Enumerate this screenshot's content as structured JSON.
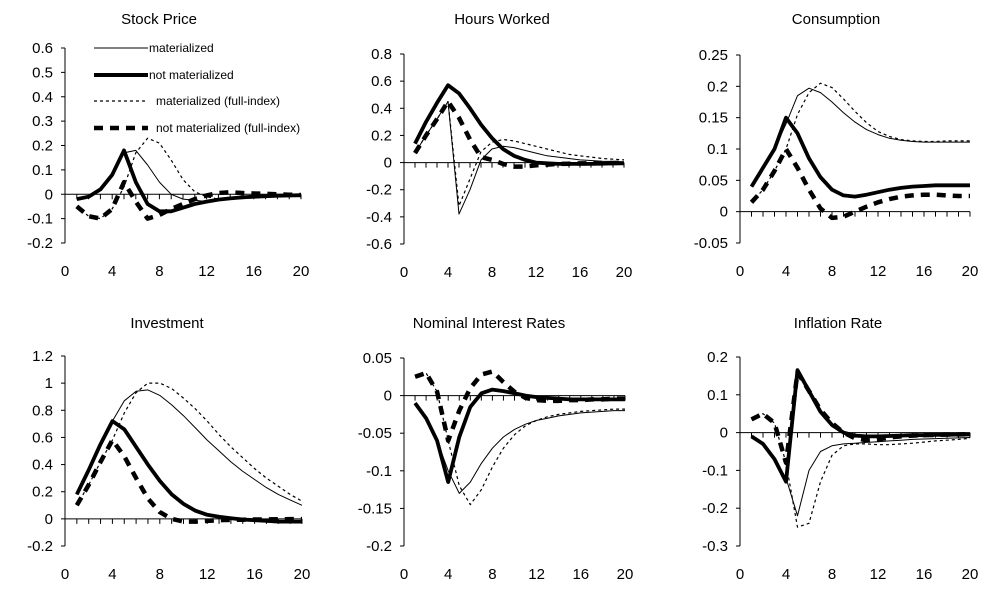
{
  "legend": [
    {
      "label": "materialized",
      "style": "thin"
    },
    {
      "label": "not materialized",
      "style": "thick"
    },
    {
      "label": "materialized (full-index)",
      "style": "thin-dashed"
    },
    {
      "label": "not materialized (full-index)",
      "style": "thick-dashed"
    }
  ],
  "chart_data": [
    {
      "type": "line",
      "title": "Stock Price",
      "x": [
        1,
        2,
        3,
        4,
        5,
        6,
        7,
        8,
        9,
        10,
        11,
        12,
        13,
        14,
        15,
        16,
        17,
        18,
        19,
        20
      ],
      "xticks": [
        0,
        4,
        8,
        12,
        16,
        20
      ],
      "ylim": [
        -0.2,
        0.6
      ],
      "yticks": [
        -0.2,
        -0.1,
        0,
        0.1,
        0.2,
        0.3,
        0.4,
        0.5,
        0.6
      ],
      "ytick_labels": [
        "-0.2",
        "-0.1",
        "0",
        "0.1",
        "0.2",
        "0.3",
        "0.4",
        "0.5",
        "0.6"
      ],
      "legend_position": "top-left",
      "series": [
        {
          "name": "materialized",
          "values": [
            -0.02,
            -0.01,
            0.02,
            0.08,
            0.17,
            0.18,
            0.12,
            0.05,
            0.0,
            -0.02,
            -0.025,
            -0.03,
            -0.025,
            -0.02,
            -0.015,
            -0.012,
            -0.01,
            -0.008,
            -0.006,
            -0.005
          ]
        },
        {
          "name": "not materialized",
          "values": [
            -0.02,
            -0.01,
            0.02,
            0.08,
            0.18,
            0.05,
            -0.04,
            -0.07,
            -0.07,
            -0.055,
            -0.04,
            -0.03,
            -0.022,
            -0.017,
            -0.013,
            -0.01,
            -0.008,
            -0.006,
            -0.005,
            -0.004
          ]
        },
        {
          "name": "materialized (full-index)",
          "values": [
            -0.05,
            -0.09,
            -0.1,
            -0.06,
            0.03,
            0.17,
            0.23,
            0.21,
            0.14,
            0.06,
            0.01,
            -0.01,
            -0.02,
            -0.02,
            -0.018,
            -0.015,
            -0.012,
            -0.01,
            -0.008,
            -0.006
          ]
        },
        {
          "name": "not materialized (full-index)",
          "values": [
            -0.05,
            -0.09,
            -0.1,
            -0.06,
            0.05,
            -0.03,
            -0.1,
            -0.085,
            -0.06,
            -0.04,
            -0.02,
            -0.005,
            0.005,
            0.008,
            0.005,
            0.003,
            0.002,
            0.0,
            -0.002,
            -0.003
          ]
        }
      ]
    },
    {
      "type": "line",
      "title": "Hours Worked",
      "x": [
        1,
        2,
        3,
        4,
        5,
        6,
        7,
        8,
        9,
        10,
        11,
        12,
        13,
        14,
        15,
        16,
        17,
        18,
        19,
        20
      ],
      "xticks": [
        0,
        4,
        8,
        12,
        16,
        20
      ],
      "ylim": [
        -0.6,
        0.8
      ],
      "yticks": [
        -0.6,
        -0.4,
        -0.2,
        0,
        0.2,
        0.4,
        0.6,
        0.8
      ],
      "ytick_labels": [
        "-0.6",
        "-0.4",
        "-0.2",
        "0",
        "0.2",
        "0.4",
        "0.6",
        "0.8"
      ],
      "series": [
        {
          "name": "materialized",
          "values": [
            0.07,
            0.2,
            0.32,
            0.45,
            -0.38,
            -0.2,
            0.02,
            0.1,
            0.12,
            0.11,
            0.09,
            0.07,
            0.05,
            0.04,
            0.03,
            0.02,
            0.015,
            0.01,
            0.008,
            0.006
          ]
        },
        {
          "name": "not materialized",
          "values": [
            0.14,
            0.3,
            0.44,
            0.57,
            0.51,
            0.4,
            0.28,
            0.18,
            0.1,
            0.05,
            0.02,
            0.0,
            -0.005,
            -0.01,
            -0.01,
            -0.01,
            -0.01,
            -0.008,
            -0.006,
            -0.005
          ]
        },
        {
          "name": "materialized (full-index)",
          "values": [
            0.07,
            0.2,
            0.32,
            0.45,
            -0.32,
            -0.12,
            0.08,
            0.15,
            0.17,
            0.16,
            0.14,
            0.12,
            0.1,
            0.08,
            0.06,
            0.05,
            0.04,
            0.03,
            0.025,
            0.02
          ]
        },
        {
          "name": "not materialized (full-index)",
          "values": [
            0.07,
            0.2,
            0.32,
            0.45,
            0.33,
            0.17,
            0.04,
            0.02,
            -0.01,
            -0.03,
            -0.03,
            -0.02,
            -0.015,
            -0.01,
            -0.008,
            -0.006,
            -0.005,
            -0.004,
            -0.003,
            -0.002
          ]
        }
      ]
    },
    {
      "type": "line",
      "title": "Consumption",
      "x": [
        1,
        2,
        3,
        4,
        5,
        6,
        7,
        8,
        9,
        10,
        11,
        12,
        13,
        14,
        15,
        16,
        17,
        18,
        19,
        20
      ],
      "xticks": [
        0,
        4,
        8,
        12,
        16,
        20
      ],
      "ylim": [
        -0.05,
        0.25
      ],
      "yticks": [
        -0.05,
        0,
        0.05,
        0.1,
        0.15,
        0.2,
        0.25
      ],
      "ytick_labels": [
        "-0.05",
        "0",
        "0.05",
        "0.1",
        "0.15",
        "0.2",
        "0.25"
      ],
      "series": [
        {
          "name": "materialized",
          "values": [
            0.04,
            0.07,
            0.1,
            0.14,
            0.185,
            0.197,
            0.19,
            0.175,
            0.158,
            0.143,
            0.131,
            0.123,
            0.117,
            0.114,
            0.112,
            0.111,
            0.111,
            0.111,
            0.111,
            0.111
          ]
        },
        {
          "name": "not materialized",
          "values": [
            0.04,
            0.07,
            0.1,
            0.15,
            0.125,
            0.085,
            0.055,
            0.035,
            0.026,
            0.024,
            0.027,
            0.031,
            0.035,
            0.038,
            0.04,
            0.041,
            0.042,
            0.042,
            0.042,
            0.042
          ]
        },
        {
          "name": "materialized (full-index)",
          "values": [
            0.015,
            0.035,
            0.065,
            0.1,
            0.155,
            0.19,
            0.205,
            0.198,
            0.18,
            0.16,
            0.142,
            0.128,
            0.12,
            0.115,
            0.113,
            0.112,
            0.112,
            0.113,
            0.113,
            0.113
          ]
        },
        {
          "name": "not materialized (full-index)",
          "values": [
            0.015,
            0.035,
            0.065,
            0.1,
            0.07,
            0.035,
            0.005,
            -0.01,
            -0.008,
            0.0,
            0.008,
            0.015,
            0.02,
            0.024,
            0.026,
            0.027,
            0.027,
            0.026,
            0.025,
            0.025
          ]
        }
      ]
    },
    {
      "type": "line",
      "title": "Investment",
      "x": [
        1,
        2,
        3,
        4,
        5,
        6,
        7,
        8,
        9,
        10,
        11,
        12,
        13,
        14,
        15,
        16,
        17,
        18,
        19,
        20
      ],
      "xticks": [
        0,
        4,
        8,
        12,
        16,
        20
      ],
      "ylim": [
        -0.2,
        1.2
      ],
      "yticks": [
        -0.2,
        0,
        0.2,
        0.4,
        0.6,
        0.8,
        1,
        1.2
      ],
      "ytick_labels": [
        "-0.2",
        "0",
        "0.2",
        "0.4",
        "0.6",
        "0.8",
        "1",
        "1.2"
      ],
      "series": [
        {
          "name": "materialized",
          "values": [
            0.18,
            0.36,
            0.55,
            0.72,
            0.87,
            0.94,
            0.95,
            0.91,
            0.84,
            0.76,
            0.67,
            0.58,
            0.5,
            0.42,
            0.35,
            0.29,
            0.23,
            0.18,
            0.14,
            0.1
          ]
        },
        {
          "name": "not materialized",
          "values": [
            0.18,
            0.36,
            0.55,
            0.72,
            0.66,
            0.53,
            0.4,
            0.28,
            0.18,
            0.11,
            0.06,
            0.03,
            0.015,
            0.005,
            -0.005,
            -0.01,
            -0.015,
            -0.02,
            -0.02,
            -0.02
          ]
        },
        {
          "name": "materialized (full-index)",
          "values": [
            0.1,
            0.25,
            0.42,
            0.58,
            0.78,
            0.93,
            1.0,
            1.0,
            0.96,
            0.89,
            0.81,
            0.72,
            0.62,
            0.53,
            0.45,
            0.37,
            0.3,
            0.24,
            0.18,
            0.13
          ]
        },
        {
          "name": "not materialized (full-index)",
          "values": [
            0.1,
            0.25,
            0.42,
            0.58,
            0.46,
            0.3,
            0.15,
            0.05,
            0.0,
            -0.02,
            -0.02,
            -0.015,
            -0.01,
            -0.008,
            -0.006,
            -0.005,
            -0.004,
            -0.003,
            -0.002,
            -0.002
          ]
        }
      ]
    },
    {
      "type": "line",
      "title": "Nominal Interest Rates",
      "x": [
        1,
        2,
        3,
        4,
        5,
        6,
        7,
        8,
        9,
        10,
        11,
        12,
        13,
        14,
        15,
        16,
        17,
        18,
        19,
        20
      ],
      "xticks": [
        0,
        4,
        8,
        12,
        16,
        20
      ],
      "ylim": [
        -0.2,
        0.05
      ],
      "yticks": [
        -0.2,
        -0.15,
        -0.1,
        -0.05,
        0,
        0.05
      ],
      "ytick_labels": [
        "-0.2",
        "-0.15",
        "-0.1",
        "-0.05",
        "0",
        "0.05"
      ],
      "series": [
        {
          "name": "materialized",
          "values": [
            -0.01,
            -0.03,
            -0.06,
            -0.1,
            -0.13,
            -0.115,
            -0.09,
            -0.07,
            -0.055,
            -0.045,
            -0.038,
            -0.033,
            -0.03,
            -0.027,
            -0.025,
            -0.023,
            -0.022,
            -0.021,
            -0.02,
            -0.02
          ]
        },
        {
          "name": "not materialized",
          "values": [
            -0.01,
            -0.03,
            -0.06,
            -0.115,
            -0.055,
            -0.015,
            0.003,
            0.008,
            0.006,
            0.003,
            0.0,
            -0.002,
            -0.003,
            -0.004,
            -0.005,
            -0.005,
            -0.005,
            -0.005,
            -0.005,
            -0.005
          ]
        },
        {
          "name": "materialized (full-index)",
          "values": [
            0.025,
            0.03,
            0.005,
            -0.06,
            -0.12,
            -0.145,
            -0.125,
            -0.095,
            -0.07,
            -0.052,
            -0.04,
            -0.033,
            -0.028,
            -0.025,
            -0.023,
            -0.021,
            -0.02,
            -0.019,
            -0.018,
            -0.018
          ]
        },
        {
          "name": "not materialized (full-index)",
          "values": [
            0.025,
            0.03,
            0.005,
            -0.06,
            -0.02,
            0.01,
            0.028,
            0.032,
            0.018,
            0.005,
            -0.003,
            -0.006,
            -0.007,
            -0.007,
            -0.006,
            -0.006,
            -0.005,
            -0.005,
            -0.004,
            -0.004
          ]
        }
      ]
    },
    {
      "type": "line",
      "title": "Inflation Rate",
      "x": [
        1,
        2,
        3,
        4,
        5,
        6,
        7,
        8,
        9,
        10,
        11,
        12,
        13,
        14,
        15,
        16,
        17,
        18,
        19,
        20
      ],
      "xticks": [
        0,
        4,
        8,
        12,
        16,
        20
      ],
      "ylim": [
        -0.3,
        0.2
      ],
      "yticks": [
        -0.3,
        -0.2,
        -0.1,
        0,
        0.1,
        0.2
      ],
      "ytick_labels": [
        "-0.3",
        "-0.2",
        "-0.1",
        "0",
        "0.1",
        "0.2"
      ],
      "series": [
        {
          "name": "materialized",
          "values": [
            -0.01,
            -0.03,
            -0.07,
            -0.12,
            -0.22,
            -0.1,
            -0.05,
            -0.035,
            -0.03,
            -0.028,
            -0.026,
            -0.024,
            -0.022,
            -0.02,
            -0.018,
            -0.017,
            -0.016,
            -0.015,
            -0.014,
            -0.013
          ]
        },
        {
          "name": "not materialized",
          "values": [
            -0.01,
            -0.03,
            -0.07,
            -0.13,
            0.165,
            0.11,
            0.055,
            0.02,
            0.0,
            -0.008,
            -0.01,
            -0.01,
            -0.009,
            -0.008,
            -0.007,
            -0.007,
            -0.006,
            -0.006,
            -0.005,
            -0.005
          ]
        },
        {
          "name": "materialized (full-index)",
          "values": [
            0.035,
            0.05,
            0.025,
            -0.08,
            -0.25,
            -0.24,
            -0.13,
            -0.06,
            -0.035,
            -0.03,
            -0.03,
            -0.032,
            -0.032,
            -0.03,
            -0.028,
            -0.025,
            -0.022,
            -0.02,
            -0.018,
            -0.015
          ]
        },
        {
          "name": "not materialized (full-index)",
          "values": [
            0.035,
            0.05,
            0.025,
            -0.08,
            0.16,
            0.11,
            0.06,
            0.025,
            0.0,
            -0.015,
            -0.02,
            -0.018,
            -0.013,
            -0.01,
            -0.008,
            -0.007,
            -0.006,
            -0.005,
            -0.005,
            -0.004
          ]
        }
      ]
    }
  ]
}
